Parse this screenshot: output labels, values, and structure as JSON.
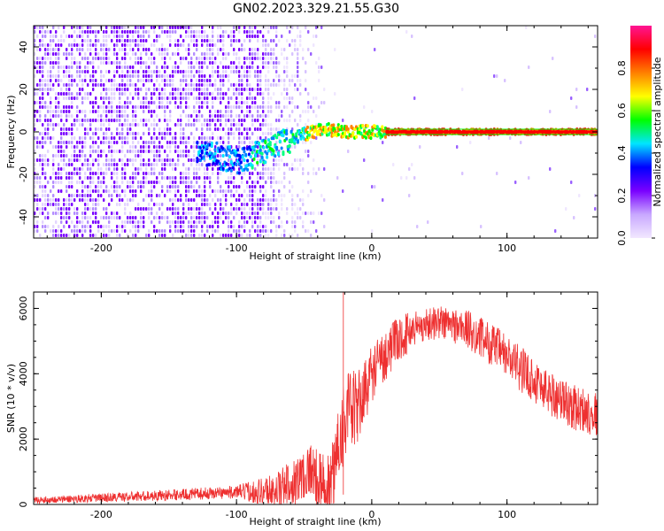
{
  "title": "GN02.2023.329.21.55.G30",
  "chart_data": [
    {
      "type": "heatmap",
      "xlabel": "Height of straight line (km)",
      "ylabel": "Frequency (Hz)",
      "xlim": [
        -250,
        167
      ],
      "ylim": [
        -50,
        50
      ],
      "xticks": [
        -200,
        -100,
        0,
        100
      ],
      "yticks": [
        -40,
        -20,
        0,
        20,
        40
      ],
      "colorbar": {
        "label": "Normalized spectral amplitude",
        "ticks": [
          0.0,
          0.2,
          0.4,
          0.6,
          0.8
        ],
        "range": [
          0,
          1
        ],
        "colors": [
          "#f2e8ff",
          "#c8a8ff",
          "#7a00ff",
          "#0000ff",
          "#00e5ff",
          "#00ff00",
          "#ffff00",
          "#ff8000",
          "#ff0000",
          "#ff1493"
        ]
      },
      "ridge": [
        {
          "x": -125,
          "f": -10
        },
        {
          "x": -110,
          "f": -12
        },
        {
          "x": -98,
          "f": -14
        },
        {
          "x": -85,
          "f": -10
        },
        {
          "x": -70,
          "f": -6
        },
        {
          "x": -60,
          "f": -4
        },
        {
          "x": -50,
          "f": -1
        },
        {
          "x": -40,
          "f": 1
        },
        {
          "x": -30,
          "f": 1
        },
        {
          "x": -20,
          "f": 0
        },
        {
          "x": -10,
          "f": 0
        },
        {
          "x": 0,
          "f": 0
        },
        {
          "x": 167,
          "f": 0
        }
      ]
    },
    {
      "type": "line",
      "xlabel": "Height of straight line (km)",
      "ylabel": "SNR (10 * v/v)",
      "xlim": [
        -250,
        167
      ],
      "ylim": [
        0,
        6500
      ],
      "xticks": [
        -200,
        -100,
        0,
        100
      ],
      "yticks": [
        0,
        2000,
        4000,
        6000
      ],
      "color": "#ee3030",
      "envelope": [
        {
          "x": -250,
          "y": 150
        },
        {
          "x": -200,
          "y": 230
        },
        {
          "x": -150,
          "y": 320
        },
        {
          "x": -100,
          "y": 420
        },
        {
          "x": -70,
          "y": 550
        },
        {
          "x": -55,
          "y": 900
        },
        {
          "x": -45,
          "y": 1300
        },
        {
          "x": -40,
          "y": 900
        },
        {
          "x": -30,
          "y": 500
        },
        {
          "x": -25,
          "y": 2200
        },
        {
          "x": -20,
          "y": 3000
        },
        {
          "x": -10,
          "y": 3200
        },
        {
          "x": 0,
          "y": 4200
        },
        {
          "x": 15,
          "y": 5000
        },
        {
          "x": 30,
          "y": 5500
        },
        {
          "x": 50,
          "y": 5700
        },
        {
          "x": 70,
          "y": 5500
        },
        {
          "x": 90,
          "y": 5000
        },
        {
          "x": 110,
          "y": 4300
        },
        {
          "x": 130,
          "y": 3600
        },
        {
          "x": 150,
          "y": 3100
        },
        {
          "x": 167,
          "y": 2900
        }
      ],
      "noise": [
        {
          "x": -250,
          "amp": 100
        },
        {
          "x": -100,
          "amp": 200
        },
        {
          "x": -60,
          "amp": 700
        },
        {
          "x": -40,
          "amp": 900
        },
        {
          "x": -25,
          "amp": 1500
        },
        {
          "x": 0,
          "amp": 900
        },
        {
          "x": 40,
          "amp": 500
        },
        {
          "x": 100,
          "amp": 700
        },
        {
          "x": 167,
          "amp": 700
        }
      ],
      "peak": {
        "x": -21,
        "y": 6500
      }
    }
  ]
}
